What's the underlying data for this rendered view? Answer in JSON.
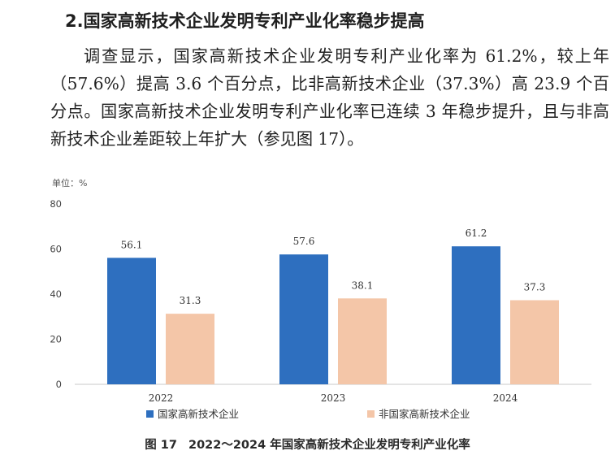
{
  "heading": "2.国家高新技术企业发明专利产业化率稳步提高",
  "paragraph": "调查显示，国家高新技术企业发明专利产业化率为 61.2%，较上年（57.6%）提高 3.6 个百分点，比非高新技术企业（37.3%）高 23.9 个百分点。国家高新技术企业发明专利产业化率已连续 3 年稳步提升，且与非高新技术企业差距较上年扩大（参见图 17）。",
  "caption": {
    "label": "图 17",
    "text": "2022～2024 年国家高新技术企业发明专利产业化率"
  },
  "chart_data": {
    "type": "bar",
    "unit_label": "单位：%",
    "categories": [
      "2022",
      "2023",
      "2024"
    ],
    "series": [
      {
        "name": "国家高新技术企业",
        "values": [
          56.1,
          57.6,
          61.2
        ],
        "color": "#2e6fbf",
        "labels": [
          "56.1",
          "57.6",
          "61.2"
        ]
      },
      {
        "name": "非国家高新技术企业",
        "values": [
          31.3,
          38.1,
          37.3
        ],
        "color": "#f4c6a8",
        "labels": [
          "31.3",
          "38.1",
          "37.3"
        ]
      }
    ],
    "yticks": [
      "0",
      "20",
      "40",
      "60",
      "80"
    ],
    "ylim": [
      0,
      80
    ],
    "grid": false,
    "legend_position": "bottom"
  }
}
